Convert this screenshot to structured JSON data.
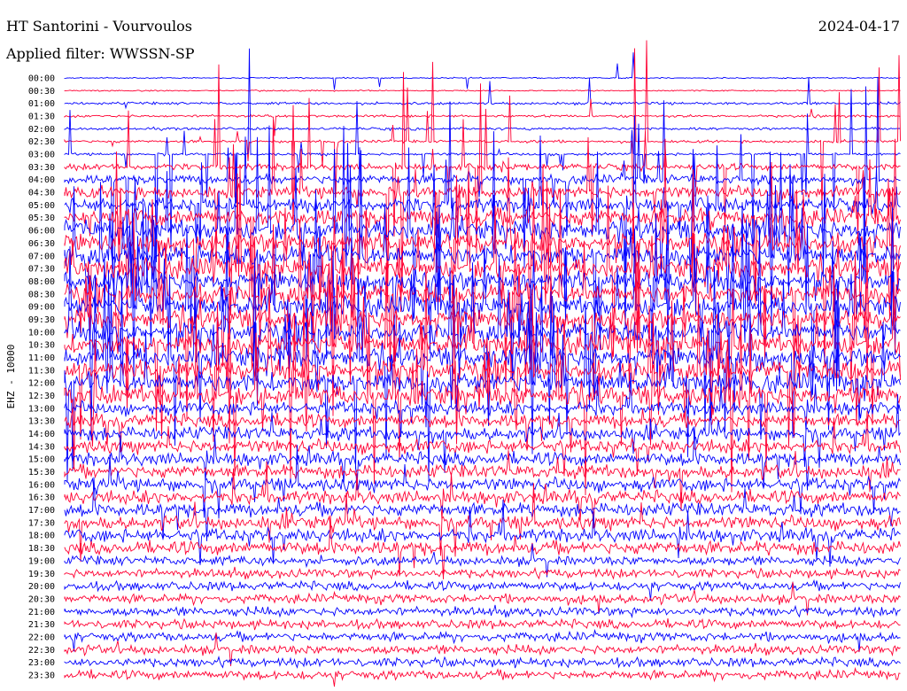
{
  "header": {
    "station": "HT Santorini - Vourvoulos",
    "date": "2024-04-17",
    "filter": "Applied filter: WWSSN-SP"
  },
  "colors": {
    "background": "#ffffff",
    "trace_a": "#0000ff",
    "trace_b": "#ff0033",
    "label": "#000000"
  },
  "chart_data": {
    "type": "line",
    "title": "HT Santorini - Vourvoulos",
    "ylabel": "EHZ - 10000",
    "series_colors_alternate": [
      "blue",
      "red"
    ],
    "row_labels": [
      "00:00",
      "00:30",
      "01:00",
      "01:30",
      "02:00",
      "02:30",
      "03:00",
      "03:30",
      "04:00",
      "04:30",
      "05:00",
      "05:30",
      "06:00",
      "06:30",
      "07:00",
      "07:30",
      "08:00",
      "08:30",
      "09:00",
      "09:30",
      "10:00",
      "10:30",
      "11:00",
      "11:30",
      "12:00",
      "12:30",
      "13:00",
      "13:30",
      "14:00",
      "14:30",
      "15:00",
      "15:30",
      "16:00",
      "16:30",
      "17:00",
      "17:30",
      "18:00",
      "18:30",
      "19:00",
      "19:30",
      "20:00",
      "20:30",
      "21:00",
      "21:30",
      "22:00",
      "22:30",
      "23:00",
      "23:30"
    ],
    "grid": false,
    "legend": "none"
  }
}
